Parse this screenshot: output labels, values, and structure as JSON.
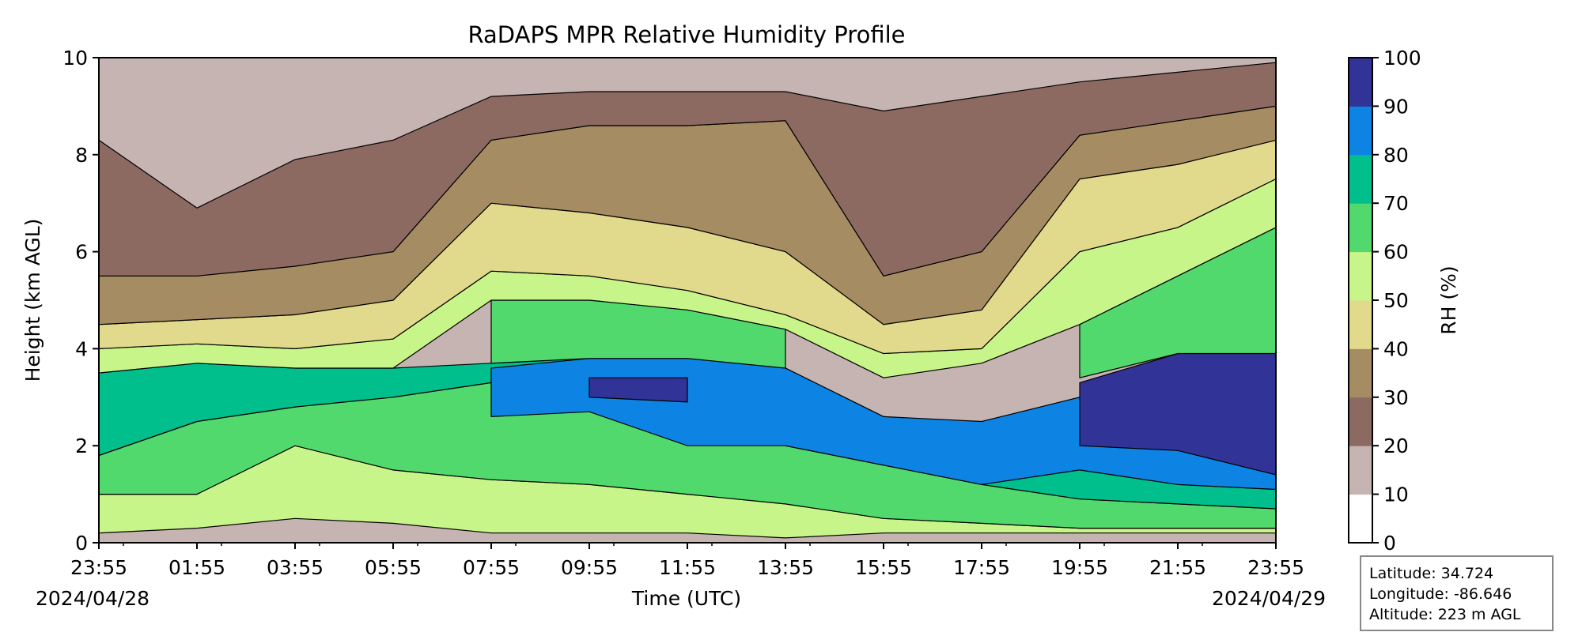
{
  "chart_data": {
    "type": "heatmap",
    "title": "RaDAPS MPR Relative Humidity Profile",
    "xlabel": "Time (UTC)",
    "ylabel": "Height (km AGL)",
    "ylim": [
      0,
      10
    ],
    "x_ticks": [
      "23:55",
      "01:55",
      "03:55",
      "05:55",
      "07:55",
      "09:55",
      "11:55",
      "13:55",
      "15:55",
      "17:55",
      "19:55",
      "21:55",
      "23:55"
    ],
    "y_ticks": [
      "0",
      "2",
      "4",
      "6",
      "8",
      "10"
    ],
    "date_start": "2024/04/28",
    "date_end": "2024/04/29",
    "colorbar": {
      "label": "RH (%)",
      "levels": [
        0,
        10,
        20,
        30,
        40,
        50,
        60,
        70,
        80,
        90,
        100
      ],
      "tick_labels": [
        "0",
        "10",
        "20",
        "30",
        "40",
        "50",
        "60",
        "70",
        "80",
        "90",
        "100"
      ],
      "colors": [
        "#ffffff",
        "#c6b4b2",
        "#8c6a61",
        "#a68c63",
        "#e1d98c",
        "#c8f58a",
        "#52d96e",
        "#00bf8c",
        "#0d84e3",
        "#323397"
      ]
    },
    "bands": [
      {
        "rh_range": "50-60",
        "heights_km": [
          [
            0.2,
            1.0
          ],
          [
            0.3,
            1.0
          ],
          [
            0.5,
            2.0
          ],
          [
            0.4,
            1.5
          ],
          [
            0.2,
            1.3
          ],
          [
            0.2,
            1.2
          ],
          [
            0.2,
            1.0
          ],
          [
            0.1,
            0.8
          ],
          [
            0.2,
            0.5
          ],
          [
            0.2,
            0.4
          ],
          [
            0.2,
            0.3
          ],
          [
            0.2,
            0.3
          ],
          [
            0.2,
            0.3
          ]
        ]
      },
      {
        "rh_range": "60-70",
        "heights_km": [
          [
            1.0,
            1.8
          ],
          [
            1.0,
            2.5
          ],
          [
            2.0,
            2.8
          ],
          [
            1.5,
            3.0
          ],
          [
            1.3,
            3.3
          ],
          [
            1.2,
            3.4
          ],
          [
            1.0,
            3.0
          ],
          [
            0.8,
            2.0
          ],
          [
            0.5,
            1.6
          ],
          [
            0.4,
            1.2
          ],
          [
            0.3,
            0.9
          ],
          [
            0.3,
            0.8
          ],
          [
            0.3,
            0.7
          ]
        ]
      },
      {
        "rh_range": "70-80",
        "heights_km": [
          [
            1.8,
            3.5
          ],
          [
            2.5,
            3.7
          ],
          [
            2.8,
            3.6
          ],
          [
            3.0,
            3.6
          ],
          [
            3.3,
            3.7
          ],
          [
            3.4,
            3.8
          ],
          [
            3.0,
            3.8
          ],
          [
            2.0,
            3.6
          ],
          [
            1.6,
            2.6
          ],
          [
            1.2,
            2.3
          ],
          [
            0.9,
            1.5
          ],
          [
            0.8,
            1.2
          ],
          [
            0.7,
            1.1
          ]
        ]
      },
      {
        "rh_range": "80-90",
        "heights_km": [
          [
            null,
            null
          ],
          [
            null,
            null
          ],
          [
            null,
            null
          ],
          [
            null,
            null
          ],
          [
            2.6,
            3.6
          ],
          [
            2.7,
            3.8
          ],
          [
            2.0,
            3.8
          ],
          [
            2.0,
            3.6
          ],
          [
            1.6,
            2.6
          ],
          [
            1.2,
            2.5
          ],
          [
            1.5,
            3.0
          ],
          [
            1.2,
            2.3
          ],
          [
            1.1,
            1.5
          ]
        ]
      },
      {
        "rh_range": "90-100",
        "heights_km": [
          [
            null,
            null
          ],
          [
            null,
            null
          ],
          [
            null,
            null
          ],
          [
            null,
            null
          ],
          [
            null,
            null
          ],
          [
            3.0,
            3.4
          ],
          [
            2.9,
            3.4
          ],
          [
            null,
            null
          ],
          [
            null,
            null
          ],
          [
            null,
            null
          ],
          [
            2.0,
            3.3
          ],
          [
            1.9,
            3.9
          ],
          [
            1.4,
            3.9
          ]
        ]
      },
      {
        "rh_range": "60-70 (aloft)",
        "heights_km": [
          [
            null,
            null
          ],
          [
            null,
            null
          ],
          [
            null,
            null
          ],
          [
            null,
            null
          ],
          [
            3.7,
            5.0
          ],
          [
            3.8,
            5.0
          ],
          [
            3.8,
            4.8
          ],
          [
            3.6,
            4.4
          ],
          [
            null,
            null
          ],
          [
            null,
            null
          ],
          [
            3.4,
            4.5
          ],
          [
            3.9,
            5.5
          ],
          [
            3.9,
            6.5
          ]
        ]
      },
      {
        "rh_range": "50-60 (aloft)",
        "heights_km": [
          [
            3.5,
            4.0
          ],
          [
            3.7,
            4.1
          ],
          [
            3.6,
            4.0
          ],
          [
            3.6,
            4.2
          ],
          [
            5.0,
            5.6
          ],
          [
            5.0,
            5.5
          ],
          [
            4.8,
            5.2
          ],
          [
            4.4,
            4.7
          ],
          [
            3.4,
            3.9
          ],
          [
            3.7,
            4.0
          ],
          [
            4.5,
            6.0
          ],
          [
            5.5,
            6.5
          ],
          [
            6.5,
            7.5
          ]
        ]
      },
      {
        "rh_range": "40-50",
        "heights_km": [
          [
            4.0,
            4.5
          ],
          [
            4.1,
            4.6
          ],
          [
            4.0,
            4.7
          ],
          [
            4.2,
            5.0
          ],
          [
            5.6,
            7.0
          ],
          [
            5.5,
            6.8
          ],
          [
            5.2,
            6.5
          ],
          [
            4.7,
            6.0
          ],
          [
            3.9,
            4.5
          ],
          [
            4.0,
            4.8
          ],
          [
            6.0,
            7.5
          ],
          [
            6.5,
            7.8
          ],
          [
            7.5,
            8.3
          ]
        ]
      },
      {
        "rh_range": "30-40",
        "heights_km": [
          [
            4.5,
            5.5
          ],
          [
            4.6,
            5.5
          ],
          [
            4.7,
            5.7
          ],
          [
            5.0,
            6.0
          ],
          [
            7.0,
            8.3
          ],
          [
            6.8,
            8.6
          ],
          [
            6.5,
            8.6
          ],
          [
            6.0,
            8.7
          ],
          [
            4.5,
            5.5
          ],
          [
            4.8,
            6.0
          ],
          [
            7.5,
            8.4
          ],
          [
            7.8,
            8.7
          ],
          [
            8.3,
            9.0
          ]
        ]
      },
      {
        "rh_range": "20-30",
        "heights_km": [
          [
            5.5,
            8.3
          ],
          [
            5.5,
            6.9
          ],
          [
            5.7,
            7.9
          ],
          [
            6.0,
            8.3
          ],
          [
            8.3,
            9.2
          ],
          [
            8.6,
            9.3
          ],
          [
            8.6,
            9.3
          ],
          [
            8.7,
            9.3
          ],
          [
            5.5,
            8.9
          ],
          [
            6.0,
            9.2
          ],
          [
            8.4,
            9.5
          ],
          [
            8.7,
            9.7
          ],
          [
            9.0,
            9.9
          ]
        ]
      }
    ]
  },
  "info": {
    "latitude": "Latitude: 34.724",
    "longitude": "Longitude: -86.646",
    "altitude": "Altitude: 223 m AGL"
  }
}
